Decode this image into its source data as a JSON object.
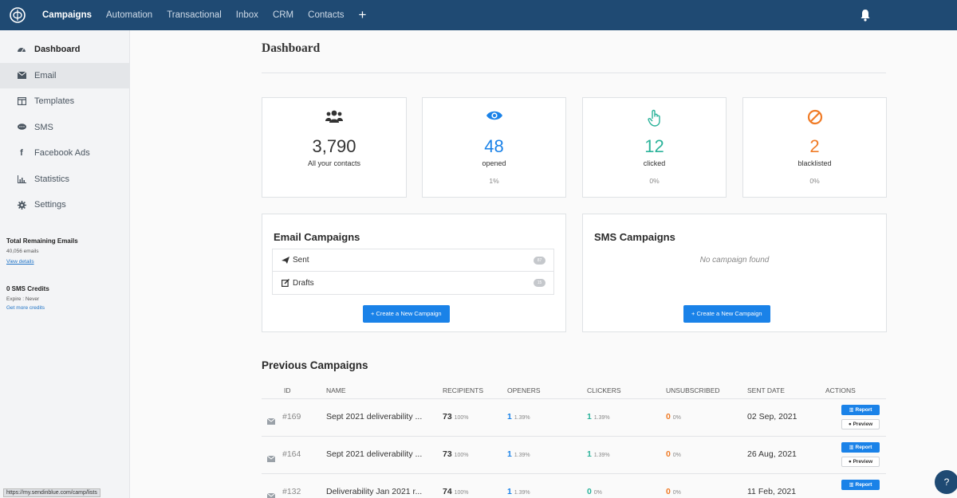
{
  "topnav": {
    "items": [
      {
        "label": "Campaigns",
        "active": true
      },
      {
        "label": "Automation"
      },
      {
        "label": "Transactional"
      },
      {
        "label": "Inbox"
      },
      {
        "label": "CRM"
      },
      {
        "label": "Contacts"
      }
    ],
    "plus": "+"
  },
  "sidebar": {
    "items": [
      {
        "label": "Dashboard",
        "icon": "dashboard-icon"
      },
      {
        "label": "Email",
        "icon": "envelope-icon"
      },
      {
        "label": "Templates",
        "icon": "template-icon"
      },
      {
        "label": "SMS",
        "icon": "chat-icon"
      },
      {
        "label": "Facebook Ads",
        "icon": "facebook-icon"
      },
      {
        "label": "Statistics",
        "icon": "chart-icon"
      },
      {
        "label": "Settings",
        "icon": "gear-icon"
      }
    ],
    "emails": {
      "title": "Total Remaining Emails",
      "count": "40,056 emails",
      "link": "View details"
    },
    "sms": {
      "title": "0 SMS Credits",
      "expire": "Expire : Never",
      "link": "Get more credits"
    },
    "status_url": "https://my.sendinblue.com/camp/lists"
  },
  "main": {
    "title": "Dashboard",
    "stats": [
      {
        "value": "3,790",
        "label": "All your contacts",
        "pct": "",
        "icon": "users-icon",
        "color": "#333333"
      },
      {
        "value": "48",
        "label": "opened",
        "pct": "1%",
        "icon": "eye-icon",
        "color": "#1a82e8"
      },
      {
        "value": "12",
        "label": "clicked",
        "pct": "0%",
        "icon": "pointer-hand-icon",
        "color": "#2bb39a"
      },
      {
        "value": "2",
        "label": "blacklisted",
        "pct": "0%",
        "icon": "ban-icon",
        "color": "#f07b26"
      }
    ],
    "email_campaigns": {
      "title": "Email Campaigns",
      "rows": [
        {
          "label": "Sent",
          "icon": "paper-plane-icon",
          "count": "87"
        },
        {
          "label": "Drafts",
          "icon": "edit-icon",
          "count": "15"
        }
      ],
      "button": "+ Create a New Campaign"
    },
    "sms_campaigns": {
      "title": "SMS Campaigns",
      "empty": "No campaign found",
      "button": "+ Create a New Campaign"
    },
    "previous": {
      "title": "Previous Campaigns",
      "headers": [
        "ID",
        "NAME",
        "RECIPIENTS",
        "OPENERS",
        "CLICKERS",
        "UNSUBSCRIBED",
        "SENT DATE",
        "ACTIONS"
      ],
      "rows": [
        {
          "id": "#169",
          "name": "Sept 2021 deliverability ...",
          "recipients": "73",
          "recipients_pct": "100%",
          "openers": "1",
          "openers_pct": "1.39%",
          "clickers": "1",
          "clickers_pct": "1.39%",
          "unsub": "0",
          "unsub_pct": "0%",
          "date": "02 Sep, 2021"
        },
        {
          "id": "#164",
          "name": "Sept 2021 deliverability ...",
          "recipients": "73",
          "recipients_pct": "100%",
          "openers": "1",
          "openers_pct": "1.39%",
          "clickers": "1",
          "clickers_pct": "1.39%",
          "unsub": "0",
          "unsub_pct": "0%",
          "date": "26 Aug, 2021"
        },
        {
          "id": "#132",
          "name": "Deliverability Jan 2021 r...",
          "recipients": "74",
          "recipients_pct": "100%",
          "openers": "1",
          "openers_pct": "1.39%",
          "clickers": "0",
          "clickers_pct": "0%",
          "unsub": "0",
          "unsub_pct": "0%",
          "date": "11 Feb, 2021"
        }
      ],
      "report_label": "Report",
      "preview_label": "Preview"
    }
  },
  "help": "?"
}
